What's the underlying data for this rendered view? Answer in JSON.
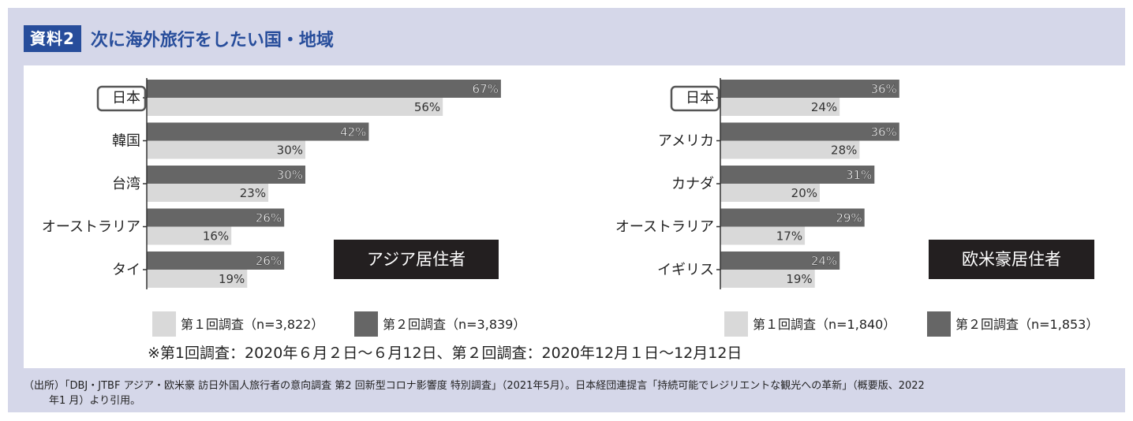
{
  "header": {
    "badge": "資料2",
    "title": "次に海外旅行をしたい国・地域"
  },
  "colors": {
    "panel_bg": "#d5d7e9",
    "badge_bg": "#274d9b",
    "title_color": "#274d9b",
    "series1": "#d9d9d9",
    "series2": "#666666",
    "tag_bg": "#231f20"
  },
  "chart_data": [
    {
      "type": "bar",
      "orientation": "horizontal",
      "tag": "アジア居住者",
      "categories": [
        "日本",
        "韓国",
        "台湾",
        "オーストラリア",
        "タイ"
      ],
      "highlight_category": "日本",
      "series": [
        {
          "name": "第１回調査（n=3,822）",
          "values": [
            56,
            30,
            23,
            16,
            19
          ],
          "labels": [
            "56%",
            "30%",
            "23%",
            "16%",
            "19%"
          ]
        },
        {
          "name": "第２回調査（n=3,839）",
          "values": [
            67,
            42,
            30,
            26,
            26
          ],
          "labels": [
            "67%",
            "42%",
            "30%",
            "26%",
            "26%"
          ]
        }
      ],
      "xlim": [
        0,
        70
      ],
      "grid": false,
      "legend": "bottom"
    },
    {
      "type": "bar",
      "orientation": "horizontal",
      "tag": "欧米豪居住者",
      "categories": [
        "日本",
        "アメリカ",
        "カナダ",
        "オーストラリア",
        "イギリス"
      ],
      "highlight_category": "日本",
      "series": [
        {
          "name": "第１回調査（n=1,840）",
          "values": [
            24,
            28,
            20,
            17,
            19
          ],
          "labels": [
            "24%",
            "28%",
            "20%",
            "17%",
            "19%"
          ]
        },
        {
          "name": "第２回調査（n=1,853）",
          "values": [
            36,
            36,
            31,
            29,
            24
          ],
          "labels": [
            "36%",
            "36%",
            "31%",
            "29%",
            "24%"
          ]
        }
      ],
      "xlim": [
        0,
        40
      ],
      "grid": false,
      "legend": "bottom"
    }
  ],
  "note": "※第1回調査：2020年６月２日～６月12日、第２回調査：2020年12月１日～12月12日",
  "source": {
    "line1": "（出所）「DBJ・JTBF アジア・欧米豪 訪日外国人旅行者の意向調査 第2 回新型コロナ影響度 特別調査」（2021年5月）。日本経団連提言「持続可能でレジリエントな観光への革新」（概要版、2022",
    "line2": "年1 月）より引用。"
  }
}
